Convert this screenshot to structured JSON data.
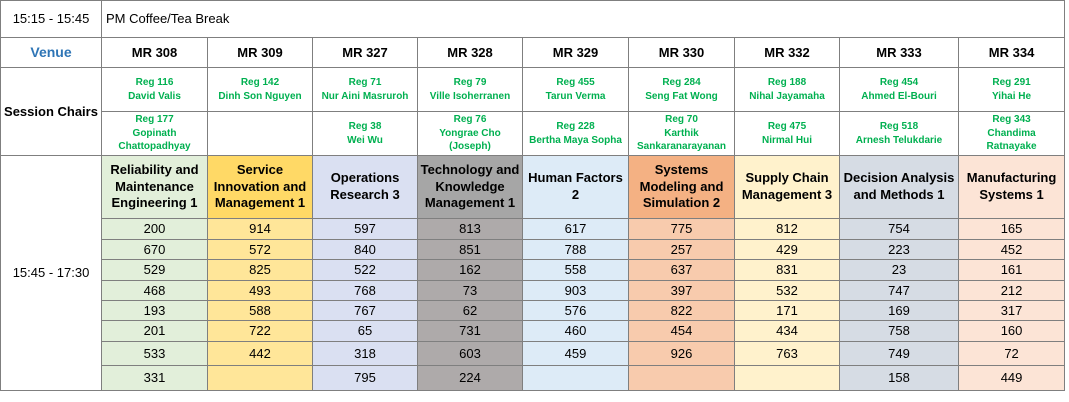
{
  "break_row": {
    "time": "15:15 - 15:45",
    "label": "PM Coffee/Tea Break"
  },
  "venue_label": "Venue",
  "venues": [
    "MR 308",
    "MR 309",
    "MR 327",
    "MR 328",
    "MR 329",
    "MR 330",
    "MR 332",
    "MR 333",
    "MR 334"
  ],
  "session_chairs_label": "Session Chairs",
  "chairs": [
    [
      {
        "reg": "Reg 116",
        "name": "David Valis"
      },
      {
        "reg": "Reg 142",
        "name": "Dinh Son Nguyen"
      },
      {
        "reg": "Reg 71",
        "name": "Nur Aini Masruroh"
      },
      {
        "reg": "Reg 79",
        "name": "Ville Isoherranen"
      },
      {
        "reg": "Reg 455",
        "name": "Tarun Verma"
      },
      {
        "reg": "Reg 284",
        "name": "Seng Fat Wong"
      },
      {
        "reg": "Reg 188",
        "name": "Nihal Jayamaha"
      },
      {
        "reg": "Reg 454",
        "name": "Ahmed El-Bouri"
      },
      {
        "reg": "Reg 291",
        "name": "Yihai He"
      }
    ],
    [
      {
        "reg": "Reg 177",
        "name": "Gopinath Chattopadhyay"
      },
      null,
      {
        "reg": "Reg 38",
        "name": "Wei Wu"
      },
      {
        "reg": "Reg 76",
        "name": "Yongrae Cho (Joseph)"
      },
      {
        "reg": "Reg 228",
        "name": "Bertha Maya Sopha"
      },
      {
        "reg": "Reg 70",
        "name": "Karthik Sankaranarayanan"
      },
      {
        "reg": "Reg 475",
        "name": "Nirmal Hui"
      },
      {
        "reg": "Reg 518",
        "name": "Arnesh Telukdarie"
      },
      {
        "reg": "Reg 343",
        "name": "Chandima Ratnayake"
      }
    ]
  ],
  "session_time": "15:45 - 17:30",
  "sessions": [
    "Reliability and Maintenance Engineering 1",
    "Service Innovation and Management 1",
    "Operations Research 3",
    "Technology and Knowledge Management 1",
    "Human Factors 2",
    "Systems Modeling and Simulation 2",
    "Supply Chain Management 3",
    "Decision Analysis and Methods 1",
    "Manufacturing Systems 1"
  ],
  "papers": [
    [
      200,
      914,
      597,
      813,
      617,
      775,
      812,
      754,
      165
    ],
    [
      670,
      572,
      840,
      851,
      788,
      257,
      429,
      223,
      452
    ],
    [
      529,
      825,
      522,
      162,
      558,
      637,
      831,
      23,
      161
    ],
    [
      468,
      493,
      768,
      73,
      903,
      397,
      532,
      747,
      212
    ],
    [
      193,
      588,
      767,
      62,
      576,
      822,
      171,
      169,
      317
    ],
    [
      201,
      722,
      65,
      731,
      460,
      454,
      434,
      758,
      160
    ],
    [
      533,
      442,
      318,
      603,
      459,
      926,
      763,
      749,
      72
    ],
    [
      331,
      null,
      795,
      224,
      null,
      null,
      null,
      158,
      449
    ]
  ]
}
